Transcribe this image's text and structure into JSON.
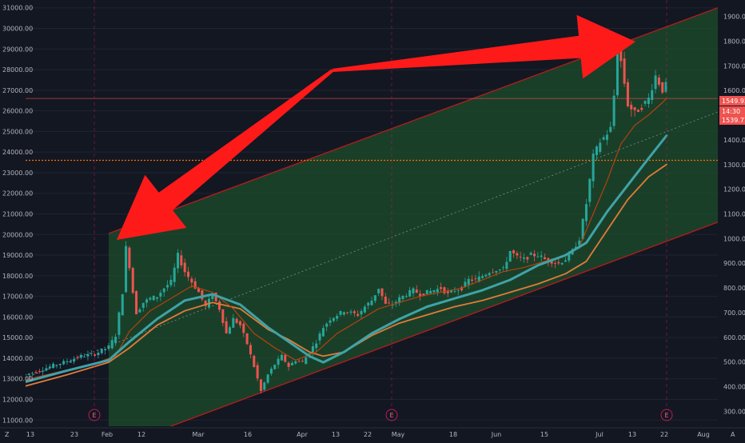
{
  "chart_data": {
    "type": "candlestick",
    "colors": {
      "background": "#131722",
      "up": "#26a69a",
      "down": "#ef5350",
      "channel_fill": "#1e4d2b",
      "channel_line": "#b71c1c",
      "ma_fast": "#c2410c",
      "ma_mid": "#e07b39",
      "ma_slow": "#3fa3a8",
      "arrow": "#ff1a1a",
      "price_label_bg": "#ef5350",
      "dotted_level": "#ff6d00"
    },
    "left_axis": {
      "ticks": [
        "31000.00",
        "30000.00",
        "29000.00",
        "28000.00",
        "27000.00",
        "26000.00",
        "25000.00",
        "24000.00",
        "23000.00",
        "22000.00",
        "21000.00",
        "20000.00",
        "19000.00",
        "18000.00",
        "17000.00",
        "16000.00",
        "15000.00",
        "14000.00",
        "13000.00",
        "12000.00",
        "11000.00"
      ],
      "range": [
        10700,
        31300
      ]
    },
    "right_axis": {
      "ticks": [
        "1900.00",
        "1800.00",
        "1700.00",
        "1600.00",
        "1500.00",
        "1400.00",
        "1300.00",
        "1200.00",
        "1100.00",
        "1000.00",
        "900.00",
        "800.00",
        "700.00",
        "600.00",
        "500.00",
        "400.00",
        "300.00"
      ],
      "range": [
        240,
        1960
      ]
    },
    "x_axis": {
      "ticks": [
        "13",
        "23",
        "Feb",
        "12",
        "Mar",
        "16",
        "Apr",
        "13",
        "22",
        "May",
        "18",
        "Jun",
        "15",
        "Jul",
        "13",
        "22",
        "Aug"
      ],
      "x_range": [
        0,
        100
      ]
    },
    "price_labels": [
      {
        "text": "1549.92",
        "value": 1549.92
      },
      {
        "text": "14:30",
        "value": 1525
      },
      {
        "text": "1539.77",
        "value": 1539.77
      }
    ],
    "earnings_markers": [
      "E",
      "E",
      "E"
    ],
    "channel": {
      "upper": [
        [
          12,
          20050
        ],
        [
          100,
          31000
        ]
      ],
      "lower": [
        [
          21,
          10700
        ],
        [
          100,
          20600
        ]
      ],
      "mid": [
        [
          0,
          13050
        ],
        [
          100,
          25950
        ]
      ]
    },
    "horizontal_levels": [
      {
        "style": "solid",
        "value": 26600
      },
      {
        "style": "dotted",
        "value": 23600
      }
    ],
    "series_close": [
      [
        0,
        13200
      ],
      [
        2,
        13400
      ],
      [
        4,
        13650
      ],
      [
        6,
        13850
      ],
      [
        8,
        14100
      ],
      [
        10,
        14200
      ],
      [
        12,
        14550
      ],
      [
        13,
        15100
      ],
      [
        14,
        17200
      ],
      [
        14.6,
        19800
      ],
      [
        15.2,
        17800
      ],
      [
        16,
        16200
      ],
      [
        17,
        16700
      ],
      [
        18,
        16900
      ],
      [
        19,
        17000
      ],
      [
        20,
        17400
      ],
      [
        21,
        17700
      ],
      [
        22,
        19000
      ],
      [
        23,
        18200
      ],
      [
        24,
        17700
      ],
      [
        25,
        17200
      ],
      [
        26,
        16500
      ],
      [
        27,
        17100
      ],
      [
        28,
        16400
      ],
      [
        29,
        15200
      ],
      [
        30,
        15900
      ],
      [
        31,
        15600
      ],
      [
        32,
        14700
      ],
      [
        33,
        13600
      ],
      [
        34,
        12400
      ],
      [
        35,
        13200
      ],
      [
        36,
        13700
      ],
      [
        37,
        14100
      ],
      [
        38,
        13600
      ],
      [
        39,
        13900
      ],
      [
        40,
        13800
      ],
      [
        41,
        14300
      ],
      [
        42,
        14800
      ],
      [
        43,
        15500
      ],
      [
        44,
        15900
      ],
      [
        45,
        16100
      ],
      [
        46,
        16300
      ],
      [
        47,
        16200
      ],
      [
        48,
        16100
      ],
      [
        49,
        16500
      ],
      [
        50,
        16800
      ],
      [
        51,
        17400
      ],
      [
        52,
        16600
      ],
      [
        53,
        16600
      ],
      [
        54,
        16900
      ],
      [
        55,
        17100
      ],
      [
        56,
        17300
      ],
      [
        57,
        17100
      ],
      [
        58,
        17200
      ],
      [
        59,
        17300
      ],
      [
        60,
        17400
      ],
      [
        61,
        17100
      ],
      [
        62,
        17300
      ],
      [
        63,
        17400
      ],
      [
        64,
        17800
      ],
      [
        65,
        17800
      ],
      [
        66,
        18000
      ],
      [
        67,
        18200
      ],
      [
        68,
        18300
      ],
      [
        69,
        18300
      ],
      [
        70,
        19200
      ],
      [
        71,
        18900
      ],
      [
        72,
        18800
      ],
      [
        73,
        19000
      ],
      [
        74,
        19000
      ],
      [
        75,
        18800
      ],
      [
        76,
        18700
      ],
      [
        77,
        18600
      ],
      [
        78,
        18800
      ],
      [
        79,
        19200
      ],
      [
        80,
        19800
      ],
      [
        81,
        21500
      ],
      [
        82,
        23800
      ],
      [
        83,
        24500
      ],
      [
        84,
        24900
      ],
      [
        84.8,
        25300
      ],
      [
        85.4,
        29600
      ],
      [
        86,
        28400
      ],
      [
        87,
        26300
      ],
      [
        88,
        25900
      ],
      [
        89,
        26200
      ],
      [
        90,
        26600
      ],
      [
        91,
        27700
      ],
      [
        92,
        27000
      ],
      [
        92.6,
        27300
      ]
    ],
    "ma_fast_values": [
      [
        0,
        12950
      ],
      [
        5,
        13350
      ],
      [
        10,
        13750
      ],
      [
        13,
        14100
      ],
      [
        15,
        15300
      ],
      [
        18,
        16300
      ],
      [
        21,
        16900
      ],
      [
        24,
        17500
      ],
      [
        27,
        17200
      ],
      [
        30,
        16400
      ],
      [
        33,
        15200
      ],
      [
        36,
        14500
      ],
      [
        39,
        13900
      ],
      [
        42,
        14300
      ],
      [
        45,
        15200
      ],
      [
        48,
        15800
      ],
      [
        51,
        16400
      ],
      [
        54,
        16700
      ],
      [
        57,
        17000
      ],
      [
        60,
        17200
      ],
      [
        63,
        17400
      ],
      [
        66,
        17800
      ],
      [
        69,
        18200
      ],
      [
        72,
        18400
      ],
      [
        75,
        18700
      ],
      [
        78,
        19000
      ],
      [
        80,
        19400
      ],
      [
        82,
        21000
      ],
      [
        84,
        22600
      ],
      [
        86,
        24400
      ],
      [
        88,
        25300
      ],
      [
        90,
        25800
      ],
      [
        92,
        26400
      ],
      [
        92.6,
        26600
      ]
    ],
    "ma_mid_values": [
      [
        0,
        12650
      ],
      [
        6,
        13200
      ],
      [
        12,
        13800
      ],
      [
        15,
        14500
      ],
      [
        19,
        15600
      ],
      [
        23,
        16300
      ],
      [
        27,
        16700
      ],
      [
        31,
        16400
      ],
      [
        35,
        15400
      ],
      [
        38,
        14900
      ],
      [
        41,
        14300
      ],
      [
        43,
        14100
      ],
      [
        46,
        14300
      ],
      [
        50,
        15100
      ],
      [
        54,
        15700
      ],
      [
        58,
        16100
      ],
      [
        62,
        16500
      ],
      [
        66,
        16800
      ],
      [
        70,
        17200
      ],
      [
        74,
        17600
      ],
      [
        78,
        18100
      ],
      [
        81,
        18700
      ],
      [
        84,
        20200
      ],
      [
        87,
        21700
      ],
      [
        90,
        22800
      ],
      [
        92.6,
        23400
      ]
    ],
    "ma_slow_values": [
      [
        0,
        12850
      ],
      [
        6,
        13400
      ],
      [
        12,
        13900
      ],
      [
        15,
        14800
      ],
      [
        19,
        15900
      ],
      [
        23,
        16800
      ],
      [
        27,
        17100
      ],
      [
        31,
        16600
      ],
      [
        35,
        15500
      ],
      [
        38,
        14800
      ],
      [
        41,
        14100
      ],
      [
        43,
        13800
      ],
      [
        46,
        14300
      ],
      [
        50,
        15200
      ],
      [
        54,
        15900
      ],
      [
        58,
        16500
      ],
      [
        62,
        16900
      ],
      [
        66,
        17300
      ],
      [
        70,
        17800
      ],
      [
        74,
        18500
      ],
      [
        78,
        19000
      ],
      [
        81,
        19600
      ],
      [
        84,
        21100
      ],
      [
        87,
        22400
      ],
      [
        90,
        23700
      ],
      [
        92.6,
        24800
      ]
    ]
  }
}
